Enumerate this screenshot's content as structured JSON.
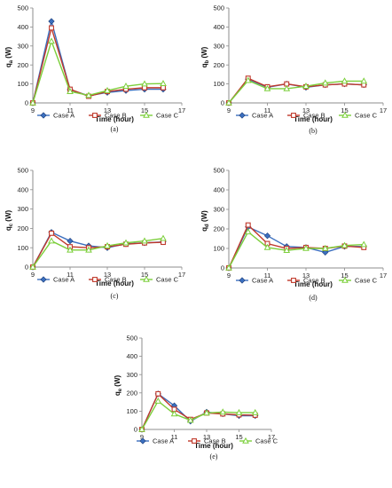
{
  "colors": {
    "Case A": "#3b6fbf",
    "Case B": "#c0392b",
    "Case C": "#7ccf3b",
    "axis": "#8c8c8c",
    "grid": "#ffffff"
  },
  "chart_data": [
    {
      "type": "line",
      "panel_label": "(a)",
      "xlabel": "Time (hour)",
      "ylabel": "q",
      "ylabel_sub": "a",
      "ylabel_unit": "(W)",
      "xlim": [
        9,
        17
      ],
      "ylim": [
        0,
        500
      ],
      "xticks": [
        9,
        11,
        13,
        15,
        17
      ],
      "yticks": [
        0,
        100,
        200,
        300,
        400,
        500
      ],
      "x": [
        9,
        10,
        11,
        12,
        13,
        14,
        15,
        16
      ],
      "series": [
        {
          "name": "Case A",
          "marker": "diamond",
          "values": [
            0,
            430,
            70,
            38,
            55,
            65,
            72,
            72
          ]
        },
        {
          "name": "Case B",
          "marker": "square",
          "values": [
            0,
            395,
            72,
            35,
            60,
            72,
            80,
            80
          ]
        },
        {
          "name": "Case C",
          "marker": "triangle",
          "values": [
            0,
            325,
            60,
            40,
            65,
            88,
            100,
            102
          ]
        }
      ]
    },
    {
      "type": "line",
      "panel_label": "(b)",
      "xlabel": "Time (hour)",
      "ylabel": "q",
      "ylabel_sub": "b",
      "ylabel_unit": "(W)",
      "xlim": [
        9,
        17
      ],
      "ylim": [
        0,
        500
      ],
      "xticks": [
        9,
        11,
        13,
        15,
        17
      ],
      "yticks": [
        0,
        100,
        200,
        300,
        400,
        500
      ],
      "x": [
        9,
        10,
        11,
        12,
        13,
        14,
        15,
        16
      ],
      "series": [
        {
          "name": "Case A",
          "marker": "diamond",
          "values": [
            0,
            125,
            82,
            100,
            82,
            95,
            100,
            95
          ]
        },
        {
          "name": "Case B",
          "marker": "square",
          "values": [
            0,
            130,
            85,
            100,
            85,
            95,
            100,
            95
          ]
        },
        {
          "name": "Case C",
          "marker": "triangle",
          "values": [
            0,
            118,
            75,
            75,
            88,
            105,
            115,
            115
          ]
        }
      ]
    },
    {
      "type": "line",
      "panel_label": "(c)",
      "xlabel": "Time (hour)",
      "ylabel": "q",
      "ylabel_sub": "c",
      "ylabel_unit": "(W)",
      "xlim": [
        9,
        17
      ],
      "ylim": [
        0,
        500
      ],
      "xticks": [
        9,
        11,
        13,
        15,
        17
      ],
      "yticks": [
        0,
        100,
        200,
        300,
        400,
        500
      ],
      "x": [
        9,
        10,
        11,
        12,
        13,
        14,
        15,
        16
      ],
      "series": [
        {
          "name": "Case A",
          "marker": "diamond",
          "values": [
            0,
            180,
            135,
            110,
            100,
            120,
            125,
            130
          ]
        },
        {
          "name": "Case B",
          "marker": "square",
          "values": [
            0,
            175,
            105,
            100,
            105,
            118,
            125,
            128
          ]
        },
        {
          "name": "Case C",
          "marker": "triangle",
          "values": [
            0,
            135,
            88,
            88,
            110,
            125,
            135,
            148
          ]
        }
      ]
    },
    {
      "type": "line",
      "panel_label": "(d)",
      "xlabel": "Time (hour)",
      "ylabel": "q",
      "ylabel_sub": "d",
      "ylabel_unit": "(W)",
      "xlim": [
        9,
        17
      ],
      "ylim": [
        0,
        500
      ],
      "xticks": [
        9,
        11,
        13,
        15,
        17
      ],
      "yticks": [
        0,
        100,
        200,
        300,
        400,
        500
      ],
      "x": [
        9,
        10,
        11,
        12,
        13,
        14,
        15,
        16
      ],
      "series": [
        {
          "name": "Case A",
          "marker": "diamond",
          "values": [
            0,
            210,
            165,
            110,
            105,
            80,
            110,
            110
          ]
        },
        {
          "name": "Case B",
          "marker": "square",
          "values": [
            0,
            220,
            125,
            100,
            105,
            100,
            112,
            105
          ]
        },
        {
          "name": "Case C",
          "marker": "triangle",
          "values": [
            0,
            185,
            105,
            90,
            100,
            100,
            115,
            120
          ]
        }
      ]
    },
    {
      "type": "line",
      "panel_label": "(e)",
      "xlabel": "Time (hour)",
      "ylabel": "q",
      "ylabel_sub": "e",
      "ylabel_unit": "(W)",
      "xlim": [
        9,
        17
      ],
      "ylim": [
        0,
        500
      ],
      "xticks": [
        9,
        11,
        13,
        15,
        17
      ],
      "yticks": [
        0,
        100,
        200,
        300,
        400,
        500
      ],
      "x": [
        9,
        10,
        11,
        12,
        13,
        14,
        15,
        16
      ],
      "series": [
        {
          "name": "Case A",
          "marker": "diamond",
          "values": [
            0,
            195,
            130,
            45,
            95,
            85,
            75,
            75
          ]
        },
        {
          "name": "Case B",
          "marker": "square",
          "values": [
            0,
            195,
            110,
            55,
            90,
            85,
            80,
            78
          ]
        },
        {
          "name": "Case C",
          "marker": "triangle",
          "values": [
            0,
            155,
            85,
            50,
            90,
            95,
            92,
            92
          ]
        }
      ]
    }
  ]
}
